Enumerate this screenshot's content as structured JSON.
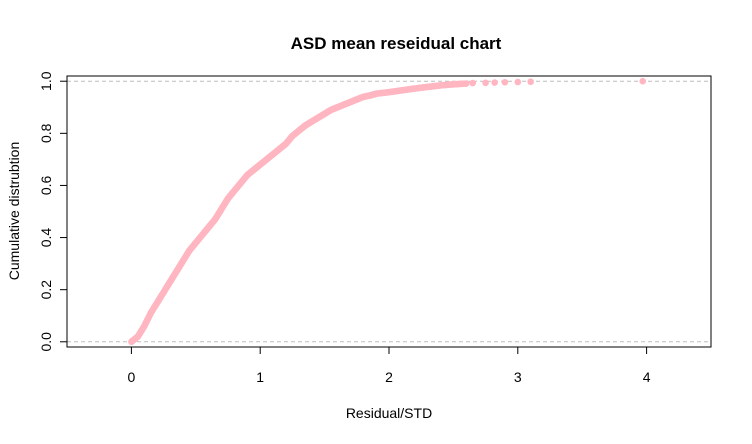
{
  "chart_data": {
    "type": "scatter",
    "title": "ASD mean reseidual chart",
    "xlabel": "Residual/STD",
    "ylabel": "Cumulative distrubtion",
    "xlim": [
      -0.5,
      4.5
    ],
    "ylim": [
      -0.02,
      1.02
    ],
    "xticks": [
      "0",
      "1",
      "2",
      "3",
      "4"
    ],
    "yticks": [
      "0.0",
      "0.2",
      "0.4",
      "0.6",
      "0.8",
      "1.0"
    ],
    "reference_lines": [
      0,
      1
    ],
    "grid": false,
    "legend": "none",
    "point_color": "#FFB6C1",
    "reference_line_color": "#BEBEBE",
    "curve_points": [
      [
        0.0,
        0.0
      ],
      [
        0.05,
        0.02
      ],
      [
        0.1,
        0.06
      ],
      [
        0.15,
        0.11
      ],
      [
        0.2,
        0.15
      ],
      [
        0.25,
        0.19
      ],
      [
        0.3,
        0.23
      ],
      [
        0.35,
        0.27
      ],
      [
        0.4,
        0.31
      ],
      [
        0.45,
        0.35
      ],
      [
        0.5,
        0.38
      ],
      [
        0.55,
        0.41
      ],
      [
        0.6,
        0.44
      ],
      [
        0.65,
        0.47
      ],
      [
        0.7,
        0.51
      ],
      [
        0.75,
        0.55
      ],
      [
        0.8,
        0.58
      ],
      [
        0.85,
        0.61
      ],
      [
        0.9,
        0.64
      ],
      [
        0.95,
        0.66
      ],
      [
        1.0,
        0.68
      ],
      [
        1.05,
        0.7
      ],
      [
        1.1,
        0.72
      ],
      [
        1.15,
        0.74
      ],
      [
        1.2,
        0.76
      ],
      [
        1.25,
        0.79
      ],
      [
        1.3,
        0.81
      ],
      [
        1.35,
        0.83
      ],
      [
        1.4,
        0.845
      ],
      [
        1.45,
        0.86
      ],
      [
        1.5,
        0.875
      ],
      [
        1.55,
        0.89
      ],
      [
        1.6,
        0.9
      ],
      [
        1.65,
        0.91
      ],
      [
        1.7,
        0.92
      ],
      [
        1.75,
        0.93
      ],
      [
        1.8,
        0.94
      ],
      [
        1.85,
        0.945
      ],
      [
        1.9,
        0.952
      ],
      [
        2.0,
        0.958
      ],
      [
        2.1,
        0.965
      ],
      [
        2.2,
        0.972
      ],
      [
        2.3,
        0.978
      ],
      [
        2.4,
        0.984
      ],
      [
        2.5,
        0.988
      ],
      [
        2.6,
        0.991
      ]
    ],
    "tail_points": [
      [
        2.65,
        0.993
      ],
      [
        2.75,
        0.994
      ],
      [
        2.82,
        0.995
      ],
      [
        2.9,
        0.996
      ],
      [
        3.0,
        0.997
      ],
      [
        3.1,
        0.998
      ],
      [
        3.97,
        1.0
      ]
    ]
  }
}
